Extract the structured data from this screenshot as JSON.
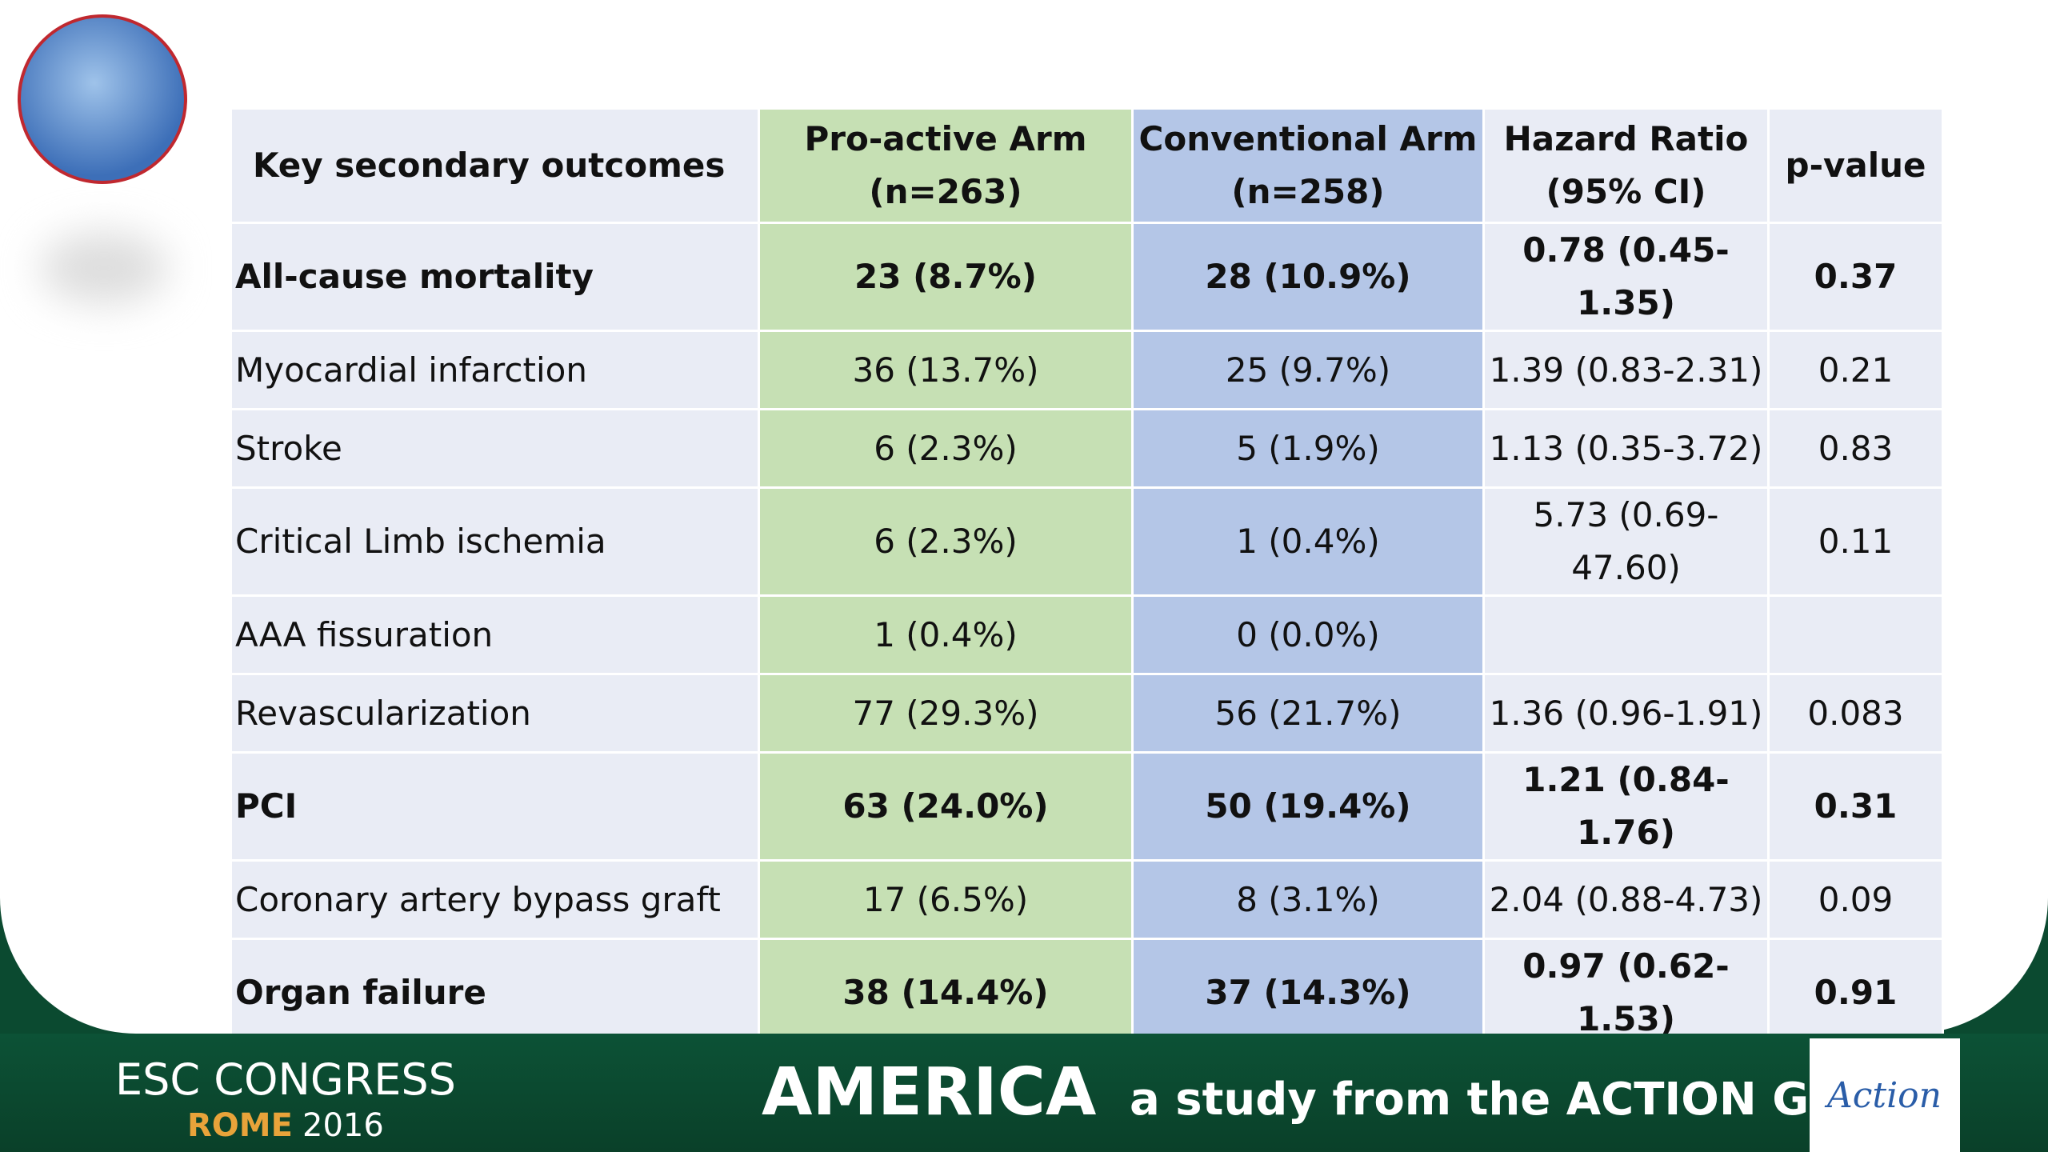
{
  "table": {
    "header": [
      "Key secondary outcomes",
      "Pro-active Arm\n(n=263)",
      "Conventional Arm\n(n=258)",
      "Hazard Ratio\n(95% CI)",
      "p-value"
    ],
    "rows": [
      {
        "bold": true,
        "cells": [
          "All-cause mortality",
          "23 (8.7%)",
          "28 (10.9%)",
          "0.78 (0.45-1.35)",
          "0.37"
        ]
      },
      {
        "bold": false,
        "cells": [
          "Myocardial infarction",
          "36 (13.7%)",
          "25 (9.7%)",
          "1.39 (0.83-2.31)",
          "0.21"
        ]
      },
      {
        "bold": false,
        "cells": [
          "Stroke",
          "6 (2.3%)",
          "5 (1.9%)",
          "1.13 (0.35-3.72)",
          "0.83"
        ]
      },
      {
        "bold": false,
        "cells": [
          "Critical Limb ischemia",
          "6 (2.3%)",
          "1 (0.4%)",
          "5.73 (0.69-47.60)",
          "0.11"
        ]
      },
      {
        "bold": false,
        "cells": [
          "AAA fissuration",
          "1 (0.4%)",
          "0 (0.0%)",
          null,
          null
        ]
      },
      {
        "bold": false,
        "cells": [
          "Revascularization",
          "77 (29.3%)",
          "56 (21.7%)",
          "1.36 (0.96-1.91)",
          "0.083"
        ]
      },
      {
        "bold": true,
        "cells": [
          "PCI",
          "63 (24.0%)",
          "50 (19.4%)",
          "1.21 (0.84-1.76)",
          "0.31"
        ]
      },
      {
        "bold": false,
        "cells": [
          "Coronary artery bypass graft",
          "17 (6.5%)",
          "8 (3.1%)",
          "2.04 (0.88-4.73)",
          "0.09"
        ]
      },
      {
        "bold": true,
        "cells": [
          "Organ failure",
          "38 (14.4%)",
          "37 (14.3%)",
          "0.97 (0.62-1.53)",
          "0.91"
        ]
      }
    ]
  },
  "footer": {
    "congress": "ESC CONGRESS",
    "city": "ROME",
    "year": "2016",
    "study": "AMERICA",
    "tagline": "a study from the ACTION Group",
    "logo": "Action"
  }
}
